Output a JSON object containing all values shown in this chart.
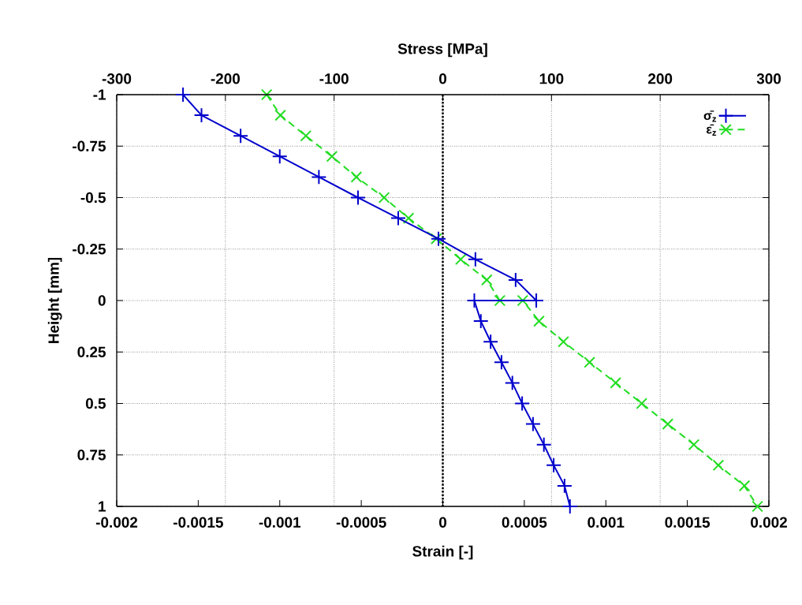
{
  "chart_data": {
    "type": "line",
    "xlabel": "Strain [-]",
    "x2label": "Stress [MPa]",
    "ylabel": "Height [mm]",
    "xlim": [
      -0.002,
      0.002
    ],
    "xticks": [
      -0.002,
      -0.0015,
      -0.001,
      -0.0005,
      0,
      0.0005,
      0.001,
      0.0015,
      0.002
    ],
    "x2lim": [
      -300,
      300
    ],
    "x2ticks": [
      -300,
      -200,
      -100,
      0,
      100,
      200,
      300
    ],
    "ylim": [
      1,
      -1
    ],
    "yticks": [
      -1,
      -0.75,
      -0.5,
      -0.25,
      0,
      0.25,
      0.5,
      0.75,
      1
    ],
    "grid": true,
    "legend": "top right",
    "ref_lines": [
      {
        "axis": "x",
        "value": 0,
        "color": "#000000",
        "line_style": "dotted"
      }
    ],
    "series": [
      {
        "name": "σ̄$_{z}$",
        "color": "#0000cc",
        "axis": "x2",
        "marker": "plus",
        "line_style": "solid",
        "x": [
          -239,
          -222,
          -186,
          -150,
          -114,
          -78,
          -41,
          -4,
          30,
          67,
          86,
          29,
          35,
          44,
          54,
          64,
          73,
          83,
          93,
          102,
          112,
          117
        ],
        "values": [
          -1,
          -0.9,
          -0.8,
          -0.7,
          -0.6,
          -0.5,
          -0.4,
          -0.3,
          -0.2,
          -0.1,
          0,
          0,
          0.1,
          0.2,
          0.3,
          0.4,
          0.5,
          0.6,
          0.7,
          0.8,
          0.9,
          1
        ]
      },
      {
        "name": "ε̄$_{z}$",
        "color": "#22dd22",
        "marker": "cross",
        "line_style": "dashed",
        "x": [
          -0.00108,
          -0.000996,
          -0.00084,
          -0.00068,
          -0.00053,
          -0.00036,
          -0.00021,
          -4e-05,
          0.00011,
          0.00027,
          0.00035,
          0.00049,
          0.00059,
          0.00074,
          0.0009,
          0.00106,
          0.00122,
          0.00138,
          0.00154,
          0.00169,
          0.00185,
          0.00193
        ],
        "values": [
          -1,
          -0.9,
          -0.8,
          -0.7,
          -0.6,
          -0.5,
          -0.4,
          -0.3,
          -0.2,
          -0.1,
          0,
          0,
          0.1,
          0.2,
          0.3,
          0.4,
          0.5,
          0.6,
          0.7,
          0.8,
          0.9,
          1
        ]
      }
    ]
  }
}
